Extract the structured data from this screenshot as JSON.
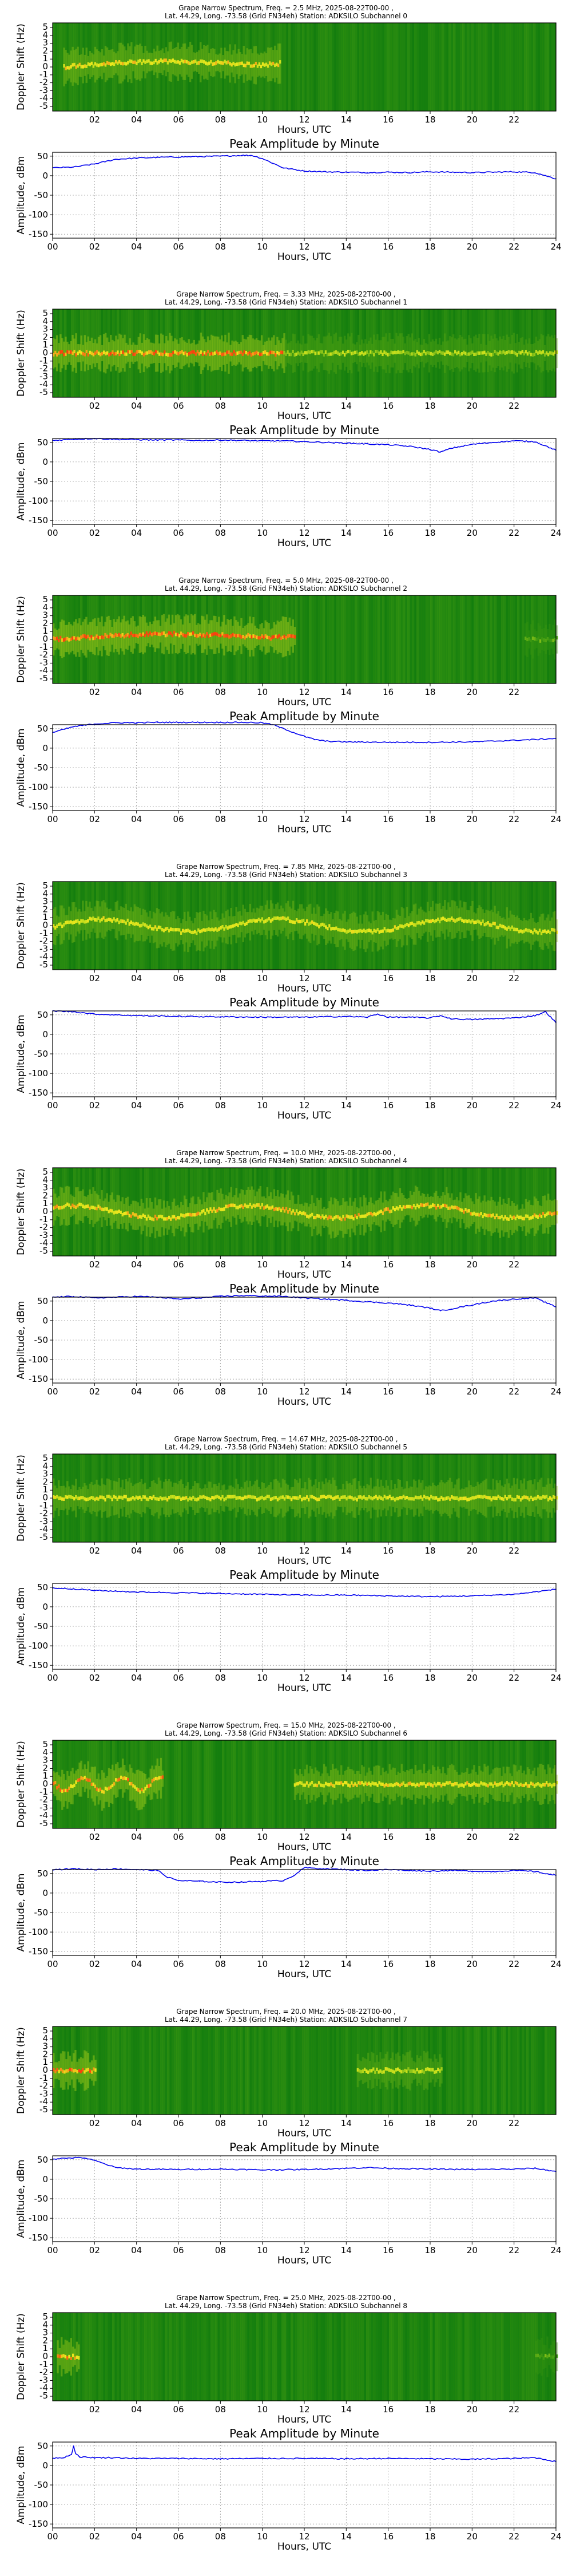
{
  "spectrograms": [
    {
      "title_line1": "Grape Narrow Spectrum, Freq. = 2.5 MHz, 2025-08-22T00-00 ,",
      "title_line2": "Lat.  44.29, Long. -73.58 (Grid FN34eh) Station: ADKSILO Subchannel 0"
    },
    {
      "title_line1": "Grape Narrow Spectrum, Freq. = 3.33 MHz, 2025-08-22T00-00 ,",
      "title_line2": "Lat.  44.29, Long. -73.58 (Grid FN34eh) Station: ADKSILO Subchannel 1"
    },
    {
      "title_line1": "Grape Narrow Spectrum, Freq. = 5.0 MHz, 2025-08-22T00-00 ,",
      "title_line2": "Lat.  44.29, Long. -73.58 (Grid FN34eh) Station: ADKSILO Subchannel 2"
    },
    {
      "title_line1": "Grape Narrow Spectrum, Freq. = 7.85 MHz, 2025-08-22T00-00 ,",
      "title_line2": "Lat.  44.29, Long. -73.58 (Grid FN34eh) Station: ADKSILO Subchannel 3"
    },
    {
      "title_line1": "Grape Narrow Spectrum, Freq. = 10.0 MHz, 2025-08-22T00-00 ,",
      "title_line2": "Lat.  44.29, Long. -73.58 (Grid FN34eh) Station: ADKSILO Subchannel 4"
    },
    {
      "title_line1": "Grape Narrow Spectrum, Freq. = 14.67 MHz, 2025-08-22T00-00 ,",
      "title_line2": "Lat.  44.29, Long. -73.58 (Grid FN34eh) Station: ADKSILO Subchannel 5"
    },
    {
      "title_line1": "Grape Narrow Spectrum, Freq. = 15.0 MHz, 2025-08-22T00-00 ,",
      "title_line2": "Lat.  44.29, Long. -73.58 (Grid FN34eh) Station: ADKSILO Subchannel 6"
    },
    {
      "title_line1": "Grape Narrow Spectrum, Freq. = 20.0 MHz, 2025-08-22T00-00 ,",
      "title_line2": "Lat.  44.29, Long. -73.58 (Grid FN34eh) Station: ADKSILO Subchannel 7"
    },
    {
      "title_line1": "Grape Narrow Spectrum, Freq. = 25.0 MHz, 2025-08-22T00-00 ,",
      "title_line2": "Lat.  44.29, Long. -73.58 (Grid FN34eh) Station: ADKSILO Subchannel 8"
    }
  ],
  "common": {
    "spec_ylabel": "Doppler Shift (Hz)",
    "spec_yticks": [
      "5",
      "4",
      "3",
      "2",
      "1",
      "0",
      "-1",
      "-2",
      "-3",
      "-4",
      "-5"
    ],
    "spec_xticks": [
      "02",
      "04",
      "06",
      "08",
      "10",
      "12",
      "14",
      "16",
      "18",
      "20",
      "22"
    ],
    "amp_title": "Peak Amplitude by Minute",
    "amp_ylabel": "Amplitude, dBm",
    "amp_yticks": [
      "50",
      "0",
      "-50",
      "-100",
      "-150"
    ],
    "amp_xticks": [
      "00",
      "02",
      "04",
      "06",
      "08",
      "10",
      "12",
      "14",
      "16",
      "18",
      "20",
      "22",
      "24"
    ],
    "xlabel": "Hours, UTC",
    "colors": {
      "background": "#0e7a0e",
      "signal_weak": "#8fd11a",
      "signal_mid": "#f0f020",
      "signal_strong": "#ff3a10",
      "trace": "#0000ee"
    }
  },
  "chart_data": [
    {
      "type": "heatmap",
      "subchannel": 0,
      "freq_mhz": 2.5,
      "xlabel": "Hours, UTC",
      "ylabel": "Doppler Shift (Hz)",
      "xlim": [
        0,
        24
      ],
      "ylim": [
        -5,
        5
      ],
      "signal_segments": [
        {
          "start_h": 0.5,
          "end_h": 10.8,
          "intensity": 0.75,
          "shape": "arch"
        }
      ]
    },
    {
      "type": "line",
      "subchannel": 0,
      "title": "Peak Amplitude by Minute",
      "xlabel": "Hours, UTC",
      "ylabel": "Amplitude, dBm",
      "xlim": [
        0,
        24
      ],
      "ylim": [
        -160,
        60
      ],
      "x": [
        0,
        1,
        2,
        3,
        4,
        5,
        6,
        7,
        8,
        9,
        9.5,
        10,
        10.5,
        11,
        12,
        13,
        14,
        15,
        16,
        17,
        18,
        19,
        20,
        21,
        22,
        23,
        24
      ],
      "y": [
        20,
        22,
        30,
        42,
        45,
        47,
        48,
        49,
        50,
        52,
        52,
        44,
        32,
        20,
        12,
        10,
        9,
        8,
        9,
        8,
        10,
        9,
        8,
        9,
        10,
        8,
        -8
      ]
    },
    {
      "type": "heatmap",
      "subchannel": 1,
      "freq_mhz": 3.33,
      "xlabel": "Hours, UTC",
      "ylabel": "Doppler Shift (Hz)",
      "xlim": [
        0,
        24
      ],
      "ylim": [
        -5,
        5
      ],
      "signal_segments": [
        {
          "start_h": 0,
          "end_h": 11,
          "intensity": 0.9,
          "shape": "flat"
        },
        {
          "start_h": 11,
          "end_h": 24,
          "intensity": 0.55,
          "shape": "flat"
        }
      ]
    },
    {
      "type": "line",
      "subchannel": 1,
      "title": "Peak Amplitude by Minute",
      "xlabel": "Hours, UTC",
      "ylabel": "Amplitude, dBm",
      "xlim": [
        0,
        24
      ],
      "ylim": [
        -160,
        60
      ],
      "x": [
        0,
        1,
        2,
        3,
        4,
        5,
        6,
        7,
        8,
        9,
        10,
        11,
        12,
        13,
        14,
        15,
        16,
        17,
        18,
        18.5,
        19,
        20,
        21,
        22,
        23,
        24
      ],
      "y": [
        55,
        58,
        60,
        58,
        57,
        56,
        56,
        55,
        56,
        55,
        54,
        54,
        52,
        50,
        48,
        46,
        44,
        40,
        32,
        25,
        35,
        45,
        50,
        54,
        52,
        30
      ]
    },
    {
      "type": "heatmap",
      "subchannel": 2,
      "freq_mhz": 5.0,
      "xlabel": "Hours, UTC",
      "ylabel": "Doppler Shift (Hz)",
      "xlim": [
        0,
        24
      ],
      "ylim": [
        -5,
        5
      ],
      "signal_segments": [
        {
          "start_h": 0,
          "end_h": 11.5,
          "intensity": 0.95,
          "shape": "arch"
        },
        {
          "start_h": 22.5,
          "end_h": 24,
          "intensity": 0.35,
          "shape": "flat"
        }
      ]
    },
    {
      "type": "line",
      "subchannel": 2,
      "title": "Peak Amplitude by Minute",
      "xlabel": "Hours, UTC",
      "ylabel": "Amplitude, dBm",
      "xlim": [
        0,
        24
      ],
      "ylim": [
        -160,
        60
      ],
      "x": [
        0,
        1,
        2,
        3,
        4,
        5,
        6,
        7,
        8,
        9,
        10,
        10.5,
        11,
        11.5,
        12,
        12.5,
        13,
        14,
        16,
        18,
        20,
        21,
        22,
        23,
        24
      ],
      "y": [
        40,
        55,
        62,
        65,
        65,
        66,
        66,
        66,
        66,
        66,
        65,
        60,
        50,
        40,
        30,
        22,
        18,
        16,
        15,
        15,
        16,
        18,
        20,
        22,
        25
      ]
    },
    {
      "type": "heatmap",
      "subchannel": 3,
      "freq_mhz": 7.85,
      "xlabel": "Hours, UTC",
      "ylabel": "Doppler Shift (Hz)",
      "xlim": [
        0,
        24
      ],
      "ylim": [
        -5,
        5
      ],
      "signal_segments": [
        {
          "start_h": 0,
          "end_h": 24,
          "intensity": 0.7,
          "shape": "wave"
        }
      ]
    },
    {
      "type": "line",
      "subchannel": 3,
      "title": "Peak Amplitude by Minute",
      "xlabel": "Hours, UTC",
      "ylabel": "Amplitude, dBm",
      "xlim": [
        0,
        24
      ],
      "ylim": [
        -160,
        60
      ],
      "x": [
        0,
        1,
        2,
        3,
        4,
        6,
        8,
        10,
        12,
        14,
        15,
        15.5,
        16,
        17,
        18,
        18.5,
        19,
        20,
        21,
        22,
        23,
        23.5,
        24
      ],
      "y": [
        60,
        58,
        52,
        50,
        48,
        46,
        45,
        44,
        44,
        46,
        44,
        52,
        44,
        44,
        42,
        48,
        40,
        38,
        40,
        42,
        48,
        58,
        30
      ]
    },
    {
      "type": "heatmap",
      "subchannel": 4,
      "freq_mhz": 10.0,
      "xlabel": "Hours, UTC",
      "ylabel": "Doppler Shift (Hz)",
      "xlim": [
        0,
        24
      ],
      "ylim": [
        -5,
        5
      ],
      "signal_segments": [
        {
          "start_h": 0,
          "end_h": 24,
          "intensity": 0.8,
          "shape": "wave"
        }
      ]
    },
    {
      "type": "line",
      "subchannel": 4,
      "title": "Peak Amplitude by Minute",
      "xlabel": "Hours, UTC",
      "ylabel": "Amplitude, dBm",
      "xlim": [
        0,
        24
      ],
      "ylim": [
        -160,
        60
      ],
      "x": [
        0,
        1,
        2,
        3,
        4,
        5,
        6,
        7,
        8,
        9,
        10,
        11,
        12,
        13,
        14,
        15,
        16,
        17,
        18,
        18.5,
        19,
        20,
        21,
        22,
        23,
        24
      ],
      "y": [
        60,
        62,
        58,
        60,
        62,
        60,
        55,
        58,
        62,
        64,
        63,
        62,
        58,
        55,
        52,
        48,
        45,
        40,
        32,
        25,
        30,
        40,
        50,
        55,
        58,
        35
      ]
    },
    {
      "type": "heatmap",
      "subchannel": 5,
      "freq_mhz": 14.67,
      "xlabel": "Hours, UTC",
      "ylabel": "Doppler Shift (Hz)",
      "xlim": [
        0,
        24
      ],
      "ylim": [
        -5,
        5
      ],
      "signal_segments": [
        {
          "start_h": 0,
          "end_h": 24,
          "intensity": 0.7,
          "shape": "flat"
        }
      ]
    },
    {
      "type": "line",
      "subchannel": 5,
      "title": "Peak Amplitude by Minute",
      "xlabel": "Hours, UTC",
      "ylabel": "Amplitude, dBm",
      "xlim": [
        0,
        24
      ],
      "ylim": [
        -160,
        60
      ],
      "x": [
        0,
        1,
        2,
        3,
        4,
        6,
        8,
        10,
        12,
        14,
        16,
        18,
        20,
        22,
        23,
        24
      ],
      "y": [
        48,
        46,
        42,
        40,
        38,
        36,
        34,
        32,
        30,
        30,
        28,
        26,
        28,
        32,
        38,
        45
      ]
    },
    {
      "type": "heatmap",
      "subchannel": 6,
      "freq_mhz": 15.0,
      "xlabel": "Hours, UTC",
      "ylabel": "Doppler Shift (Hz)",
      "xlim": [
        0,
        24
      ],
      "ylim": [
        -5,
        5
      ],
      "signal_segments": [
        {
          "start_h": 0,
          "end_h": 5.2,
          "intensity": 0.85,
          "shape": "wave"
        },
        {
          "start_h": 11.5,
          "end_h": 24,
          "intensity": 0.75,
          "shape": "flat"
        }
      ]
    },
    {
      "type": "line",
      "subchannel": 6,
      "title": "Peak Amplitude by Minute",
      "xlabel": "Hours, UTC",
      "ylabel": "Amplitude, dBm",
      "xlim": [
        0,
        24
      ],
      "ylim": [
        -160,
        60
      ],
      "x": [
        0,
        1,
        2,
        3,
        4,
        5,
        5.5,
        6,
        7,
        8,
        9,
        10,
        11,
        11.5,
        12,
        13,
        14,
        15,
        16,
        17,
        18,
        19,
        20,
        21,
        22,
        23,
        24
      ],
      "y": [
        60,
        62,
        60,
        62,
        60,
        58,
        40,
        32,
        30,
        28,
        28,
        30,
        32,
        45,
        65,
        62,
        60,
        58,
        60,
        58,
        56,
        58,
        56,
        55,
        58,
        55,
        45
      ]
    },
    {
      "type": "heatmap",
      "subchannel": 7,
      "freq_mhz": 20.0,
      "xlabel": "Hours, UTC",
      "ylabel": "Doppler Shift (Hz)",
      "xlim": [
        0,
        24
      ],
      "ylim": [
        -5,
        5
      ],
      "signal_segments": [
        {
          "start_h": 0,
          "end_h": 2,
          "intensity": 0.9,
          "shape": "flat"
        },
        {
          "start_h": 14.5,
          "end_h": 18.5,
          "intensity": 0.6,
          "shape": "flat"
        }
      ]
    },
    {
      "type": "line",
      "subchannel": 7,
      "title": "Peak Amplitude by Minute",
      "xlabel": "Hours, UTC",
      "ylabel": "Amplitude, dBm",
      "xlim": [
        0,
        24
      ],
      "ylim": [
        -160,
        60
      ],
      "x": [
        0,
        1,
        1.5,
        2,
        3,
        4,
        6,
        8,
        10,
        12,
        14,
        15,
        16,
        18,
        20,
        22,
        23,
        24
      ],
      "y": [
        52,
        55,
        55,
        48,
        30,
        26,
        25,
        26,
        24,
        25,
        28,
        30,
        28,
        26,
        25,
        26,
        28,
        20
      ]
    },
    {
      "type": "heatmap",
      "subchannel": 8,
      "freq_mhz": 25.0,
      "xlabel": "Hours, UTC",
      "ylabel": "Doppler Shift (Hz)",
      "xlim": [
        0,
        24
      ],
      "ylim": [
        -5,
        5
      ],
      "signal_segments": [
        {
          "start_h": 0.2,
          "end_h": 1.2,
          "intensity": 0.85,
          "shape": "flat"
        },
        {
          "start_h": 23,
          "end_h": 24,
          "intensity": 0.35,
          "shape": "flat"
        }
      ]
    },
    {
      "type": "line",
      "subchannel": 8,
      "title": "Peak Amplitude by Minute",
      "xlabel": "Hours, UTC",
      "ylabel": "Amplitude, dBm",
      "xlim": [
        0,
        24
      ],
      "ylim": [
        -160,
        60
      ],
      "x": [
        0,
        0.5,
        0.9,
        1.0,
        1.1,
        1.3,
        2,
        3,
        4,
        6,
        8,
        10,
        12,
        14,
        16,
        18,
        20,
        22,
        23,
        24
      ],
      "y": [
        18,
        20,
        28,
        50,
        30,
        22,
        20,
        20,
        18,
        18,
        17,
        18,
        18,
        17,
        18,
        17,
        16,
        18,
        20,
        10
      ]
    }
  ]
}
